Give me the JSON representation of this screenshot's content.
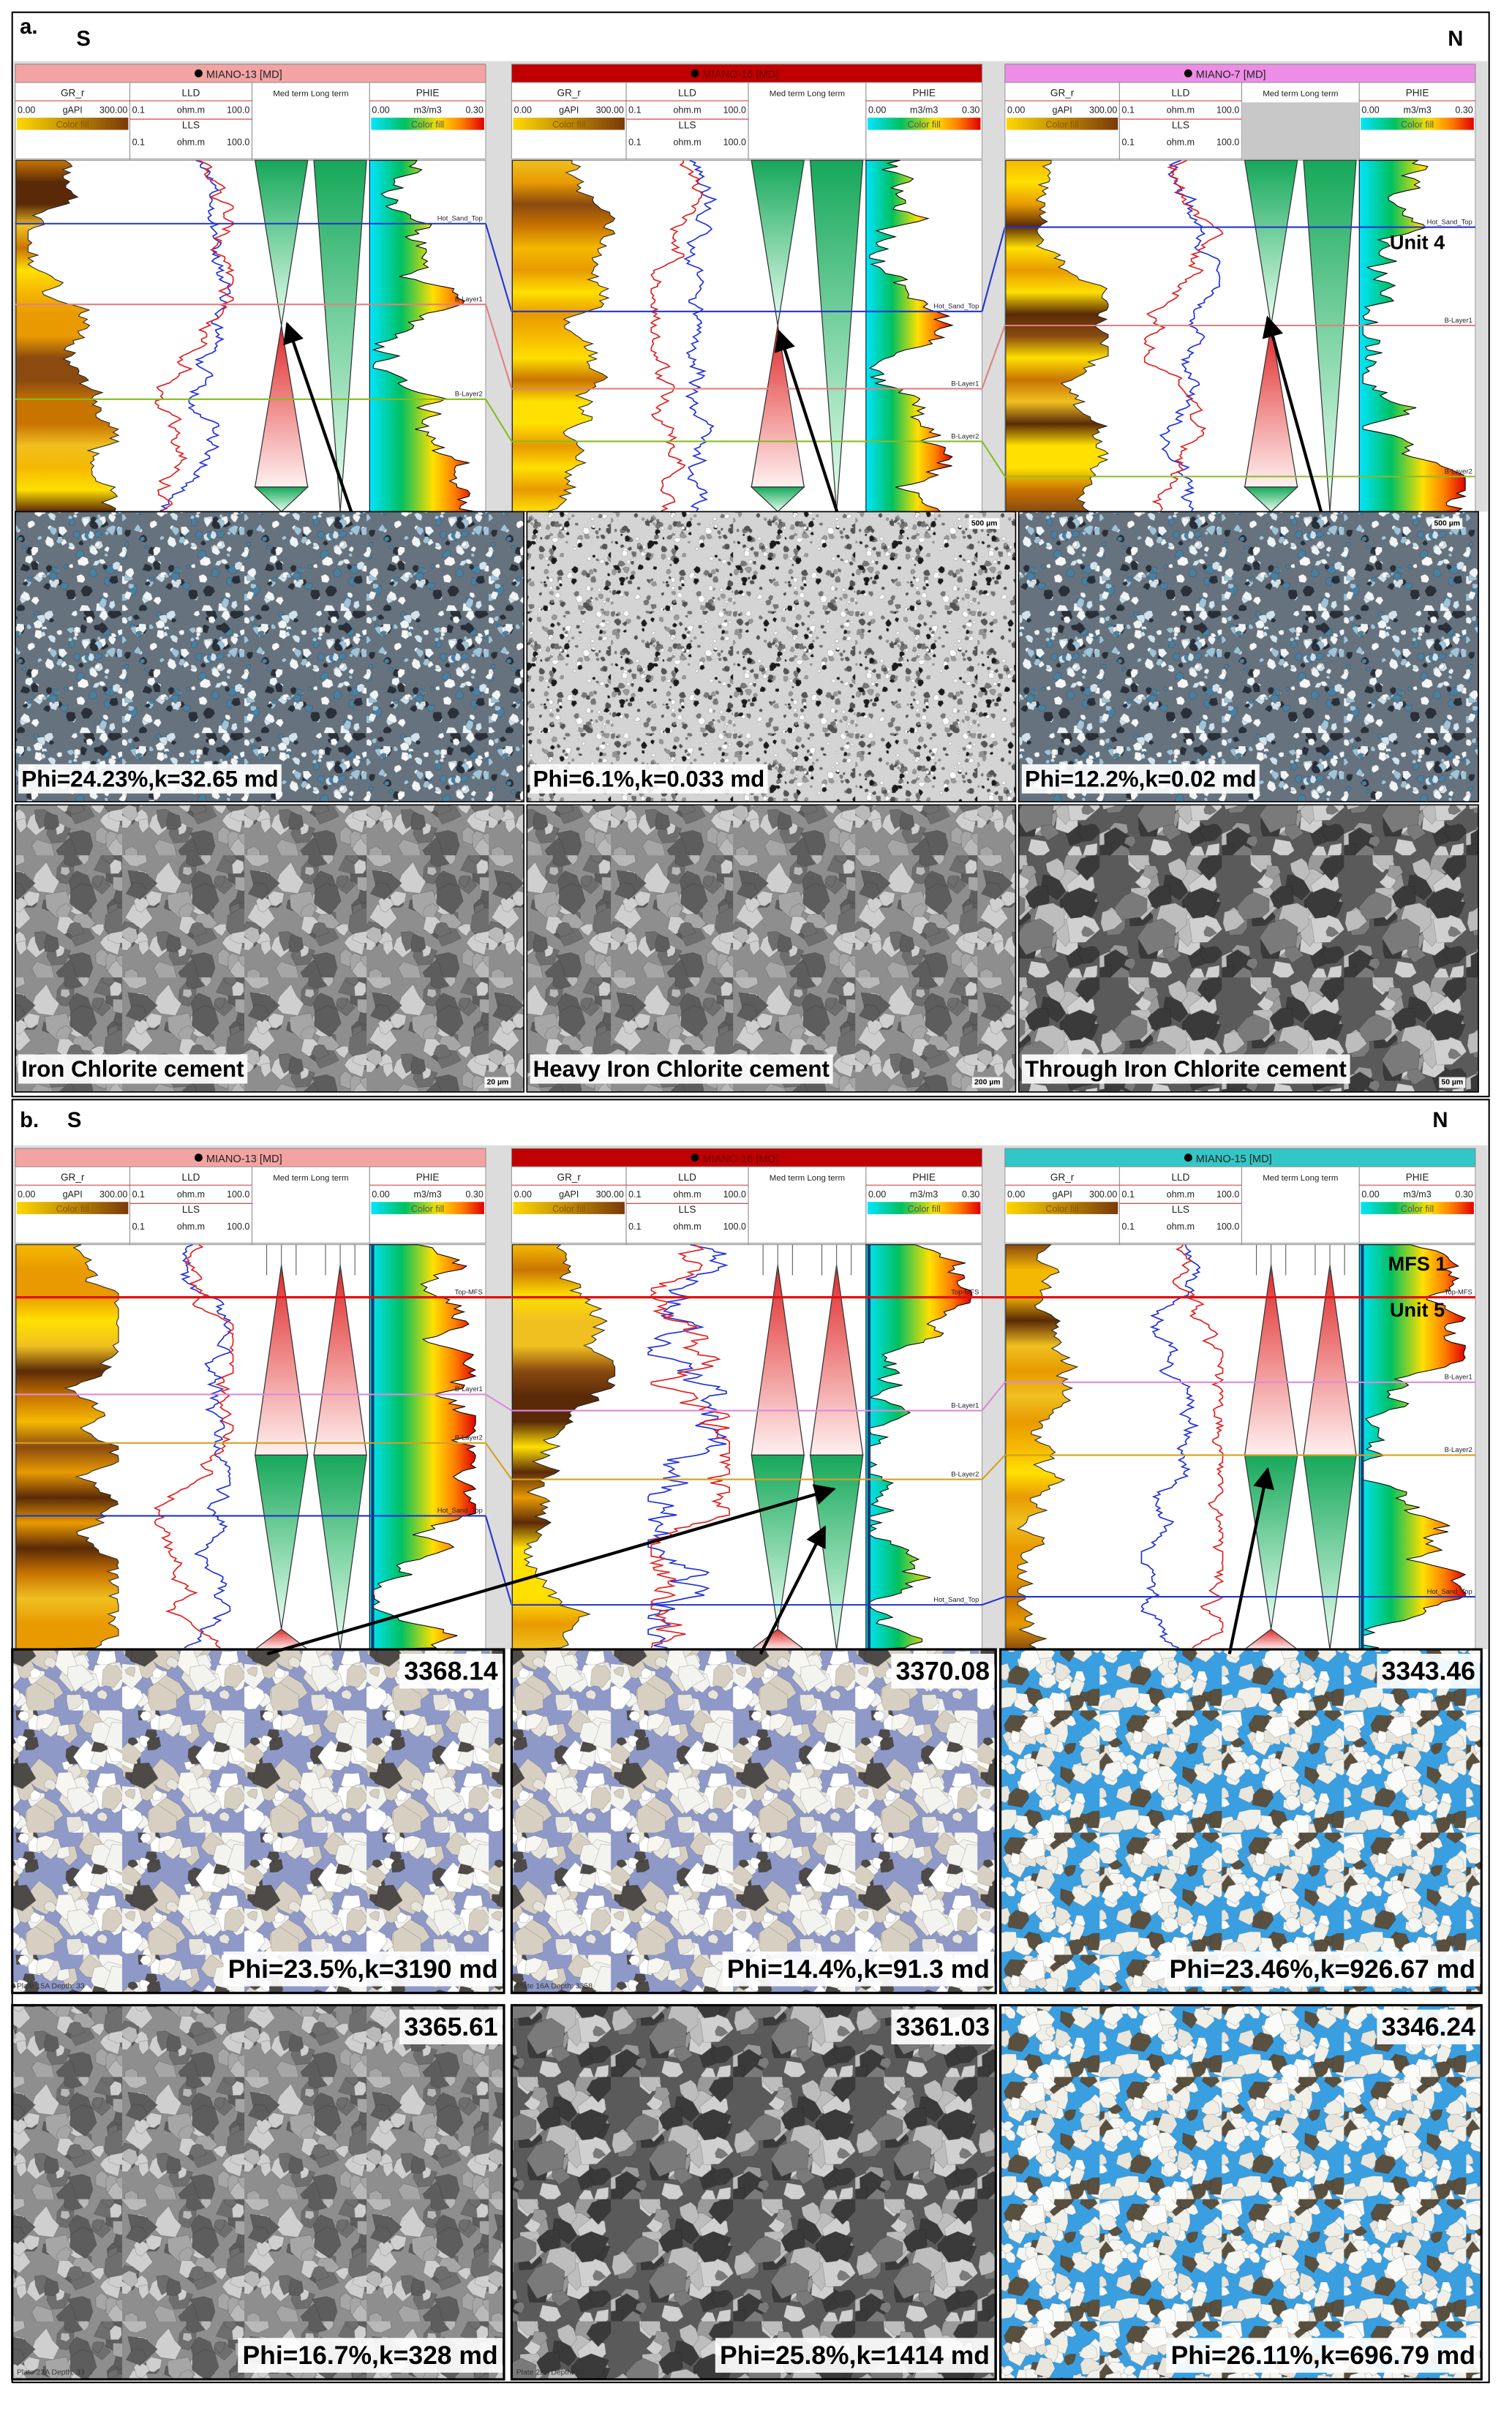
{
  "panels": [
    {
      "label": "a.",
      "left": "S",
      "right": "N",
      "wells": [
        {
          "name": "MIANO-13 [MD]",
          "color": "#f4a3a3"
        },
        {
          "name": "MIANO-16 [MD]",
          "color": "#c00000"
        },
        {
          "name": "MIANO-7 [MD]",
          "color": "#ee8de8"
        }
      ],
      "markers": [
        "Hot_Sand_Top",
        "B-Layer1",
        "B-Layer2"
      ],
      "annotations": [
        "Unit 4"
      ],
      "photos": [
        [
          {
            "caption": "Phi=24.23%,k=32.65 md",
            "texture": "thin-dark"
          },
          {
            "caption": "Phi=6.1%,k=0.033 md",
            "scale_bar": "500 µm",
            "texture": "thin-gray"
          },
          {
            "caption": "Phi=12.2%,k=0.02 md",
            "scale_bar": "500 µm",
            "texture": "thin-dark"
          }
        ],
        [
          {
            "caption": "Iron Chlorite cement",
            "scale_bar": "20 µm",
            "texture": "sem"
          },
          {
            "caption": "Heavy Iron Chlorite cement",
            "scale_bar": "200 µm",
            "texture": "sem"
          },
          {
            "caption": "Through Iron Chlorite cement",
            "scale_bar": "50 µm",
            "texture": "sem-dark"
          }
        ]
      ]
    },
    {
      "label": "b.",
      "left": "S",
      "right": "N",
      "wells": [
        {
          "name": "MIANO-13 [MD]",
          "color": "#f4a3a3"
        },
        {
          "name": "MIANO-16 [MD]",
          "color": "#c00000"
        },
        {
          "name": "MIANO-15 [MD]",
          "color": "#33c6c6"
        }
      ],
      "markers": [
        "Top-MFS",
        "B-Layer1",
        "B-Layer2",
        "Hot_Sand_Top"
      ],
      "annotations": [
        "MFS 1",
        "Unit 5"
      ],
      "photos": [
        [
          {
            "depth": "3368.14",
            "caption": "Phi=23.5%,k=3190 md",
            "plate": "Plate 15A   Depth: 33",
            "texture": "thin-white"
          },
          {
            "depth": "3370.08",
            "caption": "Phi=14.4%,k=91.3 md",
            "plate": "Plate 16A   Depth: 3358",
            "texture": "thin-white"
          },
          {
            "depth": "3343.46",
            "caption": "Phi=23.46%,k=926.67 md",
            "texture": "thin-blue"
          }
        ],
        [
          {
            "depth": "3365.61",
            "caption": "Phi=16.7%,k=328 md",
            "plate": "Plate 23A   Depth: 33",
            "texture": "sem"
          },
          {
            "depth": "3361.03",
            "caption": "Phi=25.8%,k=1414 md",
            "plate": "Plate 22A   Depth: 33",
            "texture": "sem-dark"
          },
          {
            "depth": "3346.24",
            "caption": "Phi=26.11%,k=696.79 md",
            "texture": "thin-blue"
          }
        ]
      ]
    }
  ],
  "track_header": {
    "gr": "GR_r",
    "gr_unit": "gAPI",
    "gr_min": "0.00",
    "gr_max": "300.00",
    "color_fill": "Color fill",
    "lld": "LLD",
    "lls": "LLS",
    "res_unit": "ohm.m",
    "res_min": "0.1",
    "res_max": "100.0",
    "trend": "Med term Long term",
    "phie": "PHIE",
    "phie_unit": "m3/m3",
    "phie_min": "0.00",
    "phie_max": "0.30"
  }
}
